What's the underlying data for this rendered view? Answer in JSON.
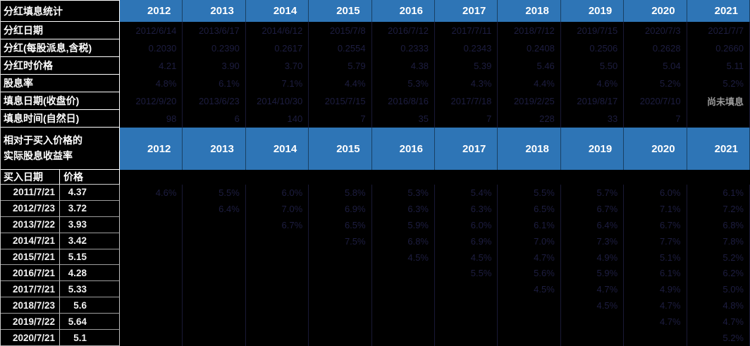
{
  "colors": {
    "header_blue": "#2E75B6",
    "cell_background": "#000000",
    "hidden_text": "#1d1d40",
    "muted_text": "#9b9b9b",
    "header_text": "#ffffff"
  },
  "top_table": {
    "title": "分红填息统计",
    "years": [
      "2012",
      "2013",
      "2014",
      "2015",
      "2016",
      "2017",
      "2018",
      "2019",
      "2020",
      "2021"
    ],
    "visible_cell_text": "尚未填息",
    "rows": [
      {
        "label": "分红日期",
        "values": [
          "2012/6/14",
          "2013/6/17",
          "2014/6/12",
          "2015/7/8",
          "2016/7/12",
          "2017/7/11",
          "2018/7/12",
          "2019/7/15",
          "2020/7/3",
          "2021/7/7"
        ]
      },
      {
        "label": "分红(每股派息,含税)",
        "values": [
          "0.2030",
          "0.2390",
          "0.2617",
          "0.2554",
          "0.2333",
          "0.2343",
          "0.2408",
          "0.2506",
          "0.2628",
          "0.2660"
        ]
      },
      {
        "label": "分红时价格",
        "values": [
          "4.21",
          "3.90",
          "3.70",
          "5.79",
          "4.38",
          "5.39",
          "5.46",
          "5.50",
          "5.04",
          "5.11"
        ]
      },
      {
        "label": "股息率",
        "values": [
          "4.8%",
          "6.1%",
          "7.1%",
          "4.4%",
          "5.3%",
          "4.3%",
          "4.4%",
          "4.6%",
          "5.2%",
          "5.2%"
        ]
      },
      {
        "label": "填息日期(收盘价)",
        "values": [
          "2012/9/20",
          "2013/6/23",
          "2014/10/30",
          "2015/7/15",
          "2016/8/16",
          "2017/7/18",
          "2019/2/25",
          "2019/8/17",
          "2020/7/10",
          "尚未填息"
        ]
      },
      {
        "label": "填息时间(自然日)",
        "values": [
          "98",
          "6",
          "140",
          "7",
          "35",
          "7",
          "228",
          "33",
          "7",
          ""
        ]
      }
    ]
  },
  "bottom_table": {
    "title_line1": "相对于买入价格的",
    "title_line2": "实际股息收益率",
    "col_headers": {
      "buy_date": "买入日期",
      "price": "价格"
    },
    "years": [
      "2012",
      "2013",
      "2014",
      "2015",
      "2016",
      "2017",
      "2018",
      "2019",
      "2020",
      "2021"
    ],
    "rows": [
      {
        "buy_date": "2011/7/21",
        "price": "4.37",
        "values": [
          "4.6%",
          "5.5%",
          "6.0%",
          "5.8%",
          "5.3%",
          "5.4%",
          "5.5%",
          "5.7%",
          "6.0%",
          "6.1%"
        ]
      },
      {
        "buy_date": "2012/7/23",
        "price": "3.72",
        "values": [
          "",
          "6.4%",
          "7.0%",
          "6.9%",
          "6.3%",
          "6.3%",
          "6.5%",
          "6.7%",
          "7.1%",
          "7.2%"
        ]
      },
      {
        "buy_date": "2013/7/22",
        "price": "3.93",
        "values": [
          "",
          "",
          "6.7%",
          "6.5%",
          "5.9%",
          "6.0%",
          "6.1%",
          "6.4%",
          "6.7%",
          "6.8%"
        ]
      },
      {
        "buy_date": "2014/7/21",
        "price": "3.42",
        "values": [
          "",
          "",
          "",
          "7.5%",
          "6.8%",
          "6.9%",
          "7.0%",
          "7.3%",
          "7.7%",
          "7.8%"
        ]
      },
      {
        "buy_date": "2015/7/21",
        "price": "5.15",
        "values": [
          "",
          "",
          "",
          "",
          "4.5%",
          "4.5%",
          "4.7%",
          "4.9%",
          "5.1%",
          "5.2%"
        ]
      },
      {
        "buy_date": "2016/7/21",
        "price": "4.28",
        "values": [
          "",
          "",
          "",
          "",
          "",
          "5.5%",
          "5.6%",
          "5.9%",
          "6.1%",
          "6.2%"
        ]
      },
      {
        "buy_date": "2017/7/21",
        "price": "5.33",
        "values": [
          "",
          "",
          "",
          "",
          "",
          "",
          "4.5%",
          "4.7%",
          "4.9%",
          "5.0%"
        ]
      },
      {
        "buy_date": "2018/7/23",
        "price": "5.6",
        "values": [
          "",
          "",
          "",
          "",
          "",
          "",
          "",
          "4.5%",
          "4.7%",
          "4.8%"
        ]
      },
      {
        "buy_date": "2019/7/22",
        "price": "5.64",
        "values": [
          "",
          "",
          "",
          "",
          "",
          "",
          "",
          "",
          "4.7%",
          "4.7%"
        ]
      },
      {
        "buy_date": "2020/7/21",
        "price": "5.1",
        "values": [
          "",
          "",
          "",
          "",
          "",
          "",
          "",
          "",
          "",
          "5.2%"
        ]
      }
    ]
  }
}
